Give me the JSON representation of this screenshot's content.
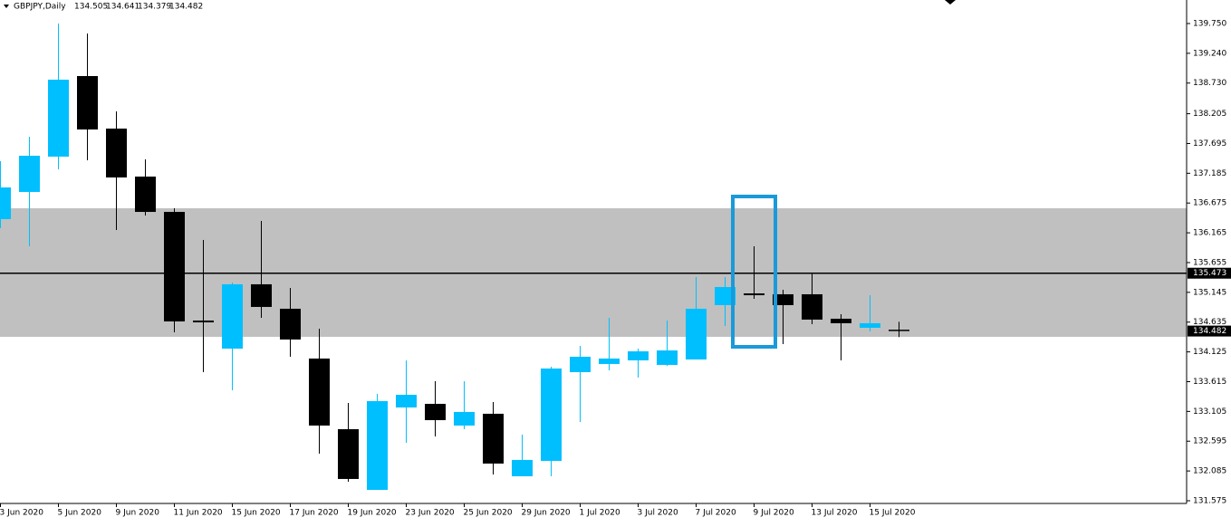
{
  "chart_data": {
    "type": "candlestick",
    "title": "GBPJPY,Daily",
    "categories": [
      "3 Jun 2020",
      null,
      "5 Jun 2020",
      null,
      "9 Jun 2020",
      null,
      "11 Jun 2020",
      null,
      "15 Jun 2020",
      null,
      "17 Jun 2020",
      null,
      "19 Jun 2020",
      null,
      "23 Jun 2020",
      null,
      "25 Jun 2020",
      null,
      "29 Jun 2020",
      null,
      "1 Jul 2020",
      null,
      "3 Jul 2020",
      null,
      "7 Jul 2020",
      null,
      "9 Jul 2020",
      null,
      "13 Jul 2020",
      null,
      "15 Jul 2020",
      null
    ],
    "open": [
      136.399,
      136.865,
      137.47,
      138.85,
      137.95,
      137.128,
      136.523,
      134.662,
      134.181,
      135.283,
      134.864,
      134.011,
      132.801,
      131.761,
      133.173,
      133.235,
      132.863,
      133.065,
      131.994,
      132.258,
      133.778,
      133.918,
      133.98,
      133.902,
      133.995,
      134.926,
      135.127,
      135.112,
      135.112,
      134.693,
      134.538,
      134.505
    ],
    "high": [
      137.392,
      137.811,
      139.75,
      139.579,
      138.245,
      137.423,
      136.585,
      136.043,
      135.314,
      136.368,
      135.221,
      134.523,
      133.251,
      133.406,
      133.98,
      133.623,
      133.623,
      133.266,
      132.708,
      133.871,
      134.228,
      134.709,
      134.181,
      134.662,
      135.407,
      135.407,
      135.934,
      135.189,
      135.469,
      134.771,
      135.096,
      134.641
    ],
    "low": [
      136.244,
      135.934,
      137.252,
      137.408,
      136.213,
      136.461,
      134.461,
      133.778,
      133.468,
      134.709,
      134.042,
      132.382,
      131.901,
      131.761,
      132.568,
      132.677,
      132.801,
      132.025,
      131.994,
      131.994,
      132.925,
      133.809,
      133.685,
      133.887,
      133.995,
      134.569,
      135.034,
      134.259,
      134.6,
      133.98,
      134.476,
      134.379
    ],
    "close": [
      136.942,
      137.485,
      138.788,
      137.935,
      137.113,
      136.523,
      134.647,
      134.631,
      135.283,
      134.895,
      134.337,
      132.863,
      131.948,
      133.282,
      133.39,
      132.956,
      133.096,
      132.212,
      132.274,
      133.84,
      134.042,
      134.011,
      134.135,
      134.15,
      134.864,
      135.236,
      135.096,
      134.926,
      134.678,
      134.616,
      134.616,
      134.482
    ],
    "up_color": "#00bfff",
    "down_color": "#000000",
    "ylim": [
      131.544,
      140.153
    ],
    "yticks": [
      {
        "value": 139.75,
        "label": "139.750"
      },
      {
        "value": 139.24,
        "label": "139.240"
      },
      {
        "value": 138.73,
        "label": "138.730"
      },
      {
        "value": 138.205,
        "label": "138.205"
      },
      {
        "value": 137.695,
        "label": "137.695"
      },
      {
        "value": 137.185,
        "label": "137.185"
      },
      {
        "value": 136.675,
        "label": "136.675"
      },
      {
        "value": 136.165,
        "label": "136.165"
      },
      {
        "value": 135.655,
        "label": "135.655"
      },
      {
        "value": 135.145,
        "label": "135.145"
      },
      {
        "value": 134.635,
        "label": "134.635"
      },
      {
        "value": 134.125,
        "label": "134.125"
      },
      {
        "value": 133.615,
        "label": "133.615"
      },
      {
        "value": 133.105,
        "label": "133.105"
      },
      {
        "value": 132.595,
        "label": "132.595"
      },
      {
        "value": 132.085,
        "label": "132.085"
      },
      {
        "value": 131.575,
        "label": "131.575"
      }
    ],
    "zone": [
      134.383,
      136.585
    ],
    "zone_color": "#c0c0c0",
    "hline": 135.473
  }
}
